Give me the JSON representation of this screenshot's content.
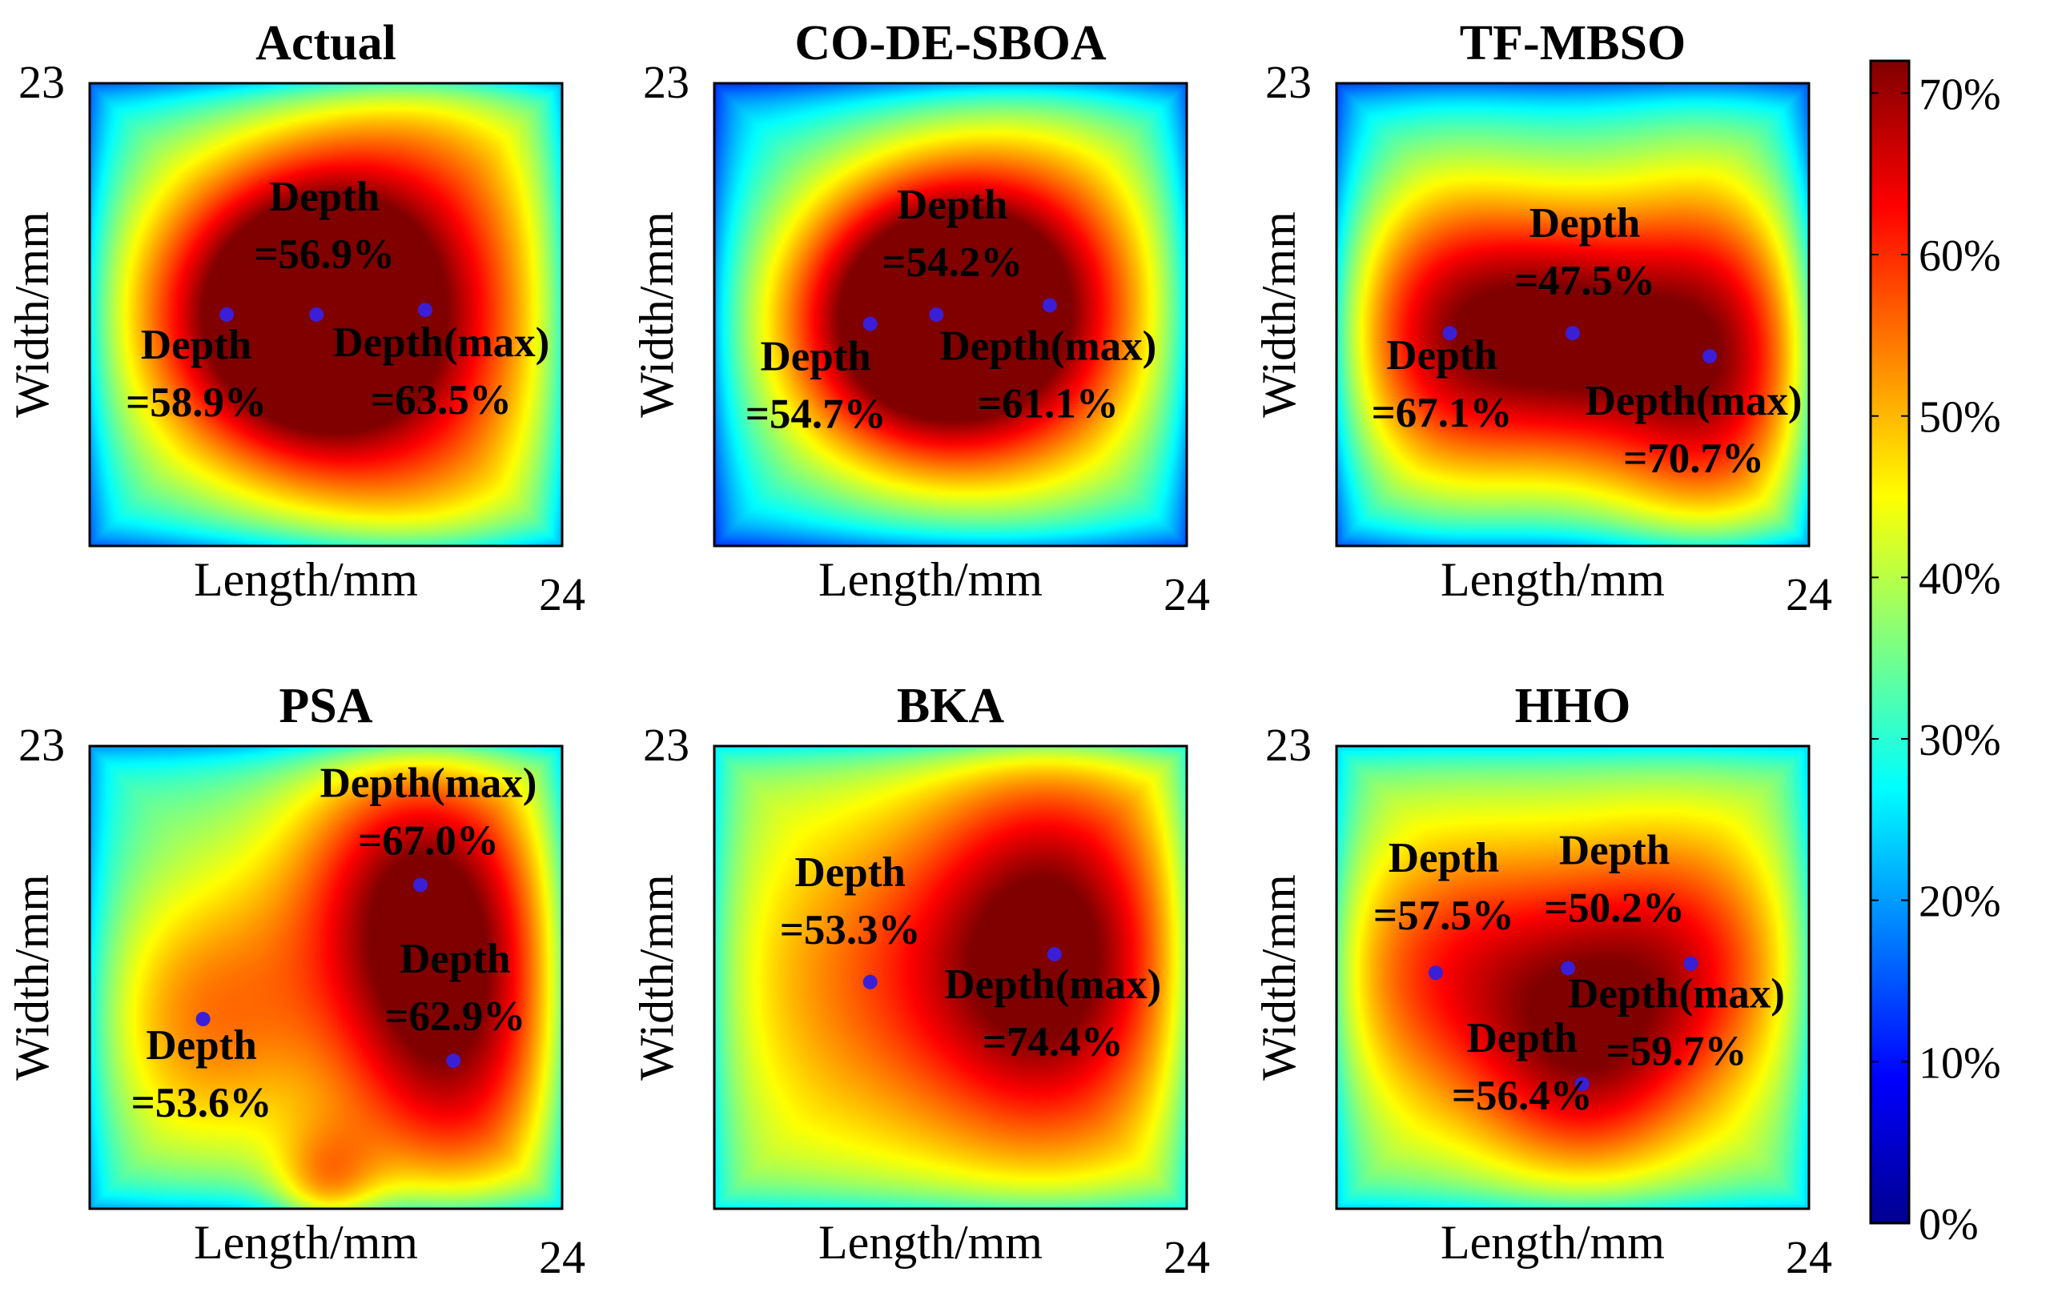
{
  "chart_data": [
    {
      "type": "heatmap",
      "title": "Actual",
      "xlabel": "Length/mm",
      "ylabel": "Width/mm",
      "x_tick_label": "24",
      "y_tick_label": "23",
      "value_units": "%",
      "peaks": [
        {
          "x": 0.29,
          "y": 0.5,
          "value": 58.9,
          "sx": 0.22,
          "sy": 0.26
        },
        {
          "x": 0.48,
          "y": 0.5,
          "value": 56.9,
          "sx": 0.16,
          "sy": 0.2
        },
        {
          "x": 0.71,
          "y": 0.49,
          "value": 63.5,
          "sx": 0.24,
          "sy": 0.42
        }
      ],
      "base": 28,
      "points": [
        {
          "label": "Depth",
          "value": "=58.9%",
          "x": 0.29,
          "y": 0.5
        },
        {
          "label": "Depth",
          "value": "=56.9%",
          "x": 0.48,
          "y": 0.5
        },
        {
          "label": "Depth(max)",
          "value": "=63.5%",
          "x": 0.71,
          "y": 0.49
        }
      ]
    },
    {
      "type": "heatmap",
      "title": "CO-DE-SBOA",
      "xlabel": "Length/mm",
      "ylabel": "Width/mm",
      "x_tick_label": "24",
      "y_tick_label": "23",
      "value_units": "%",
      "peaks": [
        {
          "x": 0.33,
          "y": 0.52,
          "value": 54.7,
          "sx": 0.22,
          "sy": 0.24
        },
        {
          "x": 0.47,
          "y": 0.5,
          "value": 54.2,
          "sx": 0.18,
          "sy": 0.22
        },
        {
          "x": 0.71,
          "y": 0.48,
          "value": 61.1,
          "sx": 0.22,
          "sy": 0.3
        }
      ],
      "base": 26,
      "points": [
        {
          "label": "Depth",
          "value": "=54.7%",
          "x": 0.33,
          "y": 0.52
        },
        {
          "label": "Depth",
          "value": "=54.2%",
          "x": 0.47,
          "y": 0.5
        },
        {
          "label": "Depth(max)",
          "value": "=61.1%",
          "x": 0.71,
          "y": 0.48
        }
      ]
    },
    {
      "type": "heatmap",
      "title": "TF-MBSO",
      "xlabel": "Length/mm",
      "ylabel": "Width/mm",
      "x_tick_label": "24",
      "y_tick_label": "23",
      "value_units": "%",
      "peaks": [
        {
          "x": 0.24,
          "y": 0.54,
          "value": 67.1,
          "sx": 0.19,
          "sy": 0.26
        },
        {
          "x": 0.5,
          "y": 0.54,
          "value": 47.5,
          "sx": 0.14,
          "sy": 0.2
        },
        {
          "x": 0.79,
          "y": 0.59,
          "value": 70.7,
          "sx": 0.19,
          "sy": 0.3
        }
      ],
      "base": 26,
      "points": [
        {
          "label": "Depth",
          "value": "=67.1%",
          "x": 0.24,
          "y": 0.54
        },
        {
          "label": "Depth",
          "value": "=47.5%",
          "x": 0.5,
          "y": 0.54
        },
        {
          "label": "Depth(max)",
          "value": "=70.7%",
          "x": 0.79,
          "y": 0.59
        }
      ]
    },
    {
      "type": "heatmap",
      "title": "PSA",
      "xlabel": "Length/mm",
      "ylabel": "Width/mm",
      "x_tick_label": "24",
      "y_tick_label": "23",
      "value_units": "%",
      "peaks": [
        {
          "x": 0.24,
          "y": 0.59,
          "value": 53.6,
          "sx": 0.18,
          "sy": 0.22
        },
        {
          "x": 0.7,
          "y": 0.3,
          "value": 67.0,
          "sx": 0.2,
          "sy": 0.24
        },
        {
          "x": 0.77,
          "y": 0.68,
          "value": 62.9,
          "sx": 0.18,
          "sy": 0.26
        },
        {
          "x": 0.5,
          "y": 0.97,
          "value": 52.0,
          "sx": 0.08,
          "sy": 0.1
        }
      ],
      "base": 34,
      "points": [
        {
          "label": "Depth",
          "value": "=53.6%",
          "x": 0.24,
          "y": 0.59
        },
        {
          "label": "Depth(max)",
          "value": "=67.0%",
          "x": 0.7,
          "y": 0.3
        },
        {
          "label": "Depth",
          "value": "=62.9%",
          "x": 0.77,
          "y": 0.68
        }
      ]
    },
    {
      "type": "heatmap",
      "title": "BKA",
      "xlabel": "Length/mm",
      "ylabel": "Width/mm",
      "x_tick_label": "24",
      "y_tick_label": "23",
      "value_units": "%",
      "peaks": [
        {
          "x": 0.33,
          "y": 0.51,
          "value": 53.3,
          "sx": 0.24,
          "sy": 0.26
        },
        {
          "x": 0.72,
          "y": 0.45,
          "value": 74.4,
          "sx": 0.2,
          "sy": 0.3
        }
      ],
      "base": 40,
      "points": [
        {
          "label": "Depth",
          "value": "=53.3%",
          "x": 0.33,
          "y": 0.51
        },
        {
          "label": "Depth(max)",
          "value": "=74.4%",
          "x": 0.72,
          "y": 0.45
        }
      ]
    },
    {
      "type": "heatmap",
      "title": "HHO",
      "xlabel": "Length/mm",
      "ylabel": "Width/mm",
      "x_tick_label": "24",
      "y_tick_label": "23",
      "value_units": "%",
      "peaks": [
        {
          "x": 0.21,
          "y": 0.49,
          "value": 57.5,
          "sx": 0.2,
          "sy": 0.22
        },
        {
          "x": 0.49,
          "y": 0.48,
          "value": 50.2,
          "sx": 0.18,
          "sy": 0.2
        },
        {
          "x": 0.75,
          "y": 0.47,
          "value": 59.7,
          "sx": 0.18,
          "sy": 0.22
        },
        {
          "x": 0.52,
          "y": 0.73,
          "value": 56.4,
          "sx": 0.16,
          "sy": 0.18
        }
      ],
      "base": 38,
      "points": [
        {
          "label": "Depth",
          "value": "=57.5%",
          "x": 0.21,
          "y": 0.49
        },
        {
          "label": "Depth",
          "value": "=50.2%",
          "x": 0.49,
          "y": 0.48
        },
        {
          "label": "Depth(max)",
          "value": "=59.7%",
          "x": 0.75,
          "y": 0.47
        },
        {
          "label": "Depth",
          "value": "=56.4%",
          "x": 0.52,
          "y": 0.73
        }
      ]
    }
  ],
  "colorbar": {
    "min": 0,
    "max": 72,
    "ticks": [
      "0%",
      "10%",
      "20%",
      "30%",
      "40%",
      "50%",
      "60%",
      "70%"
    ],
    "tick_values": [
      0,
      10,
      20,
      30,
      40,
      50,
      60,
      70
    ],
    "colormap": "jet"
  },
  "colors": {
    "marker": "#3a1fd6",
    "frame": "#000000"
  }
}
